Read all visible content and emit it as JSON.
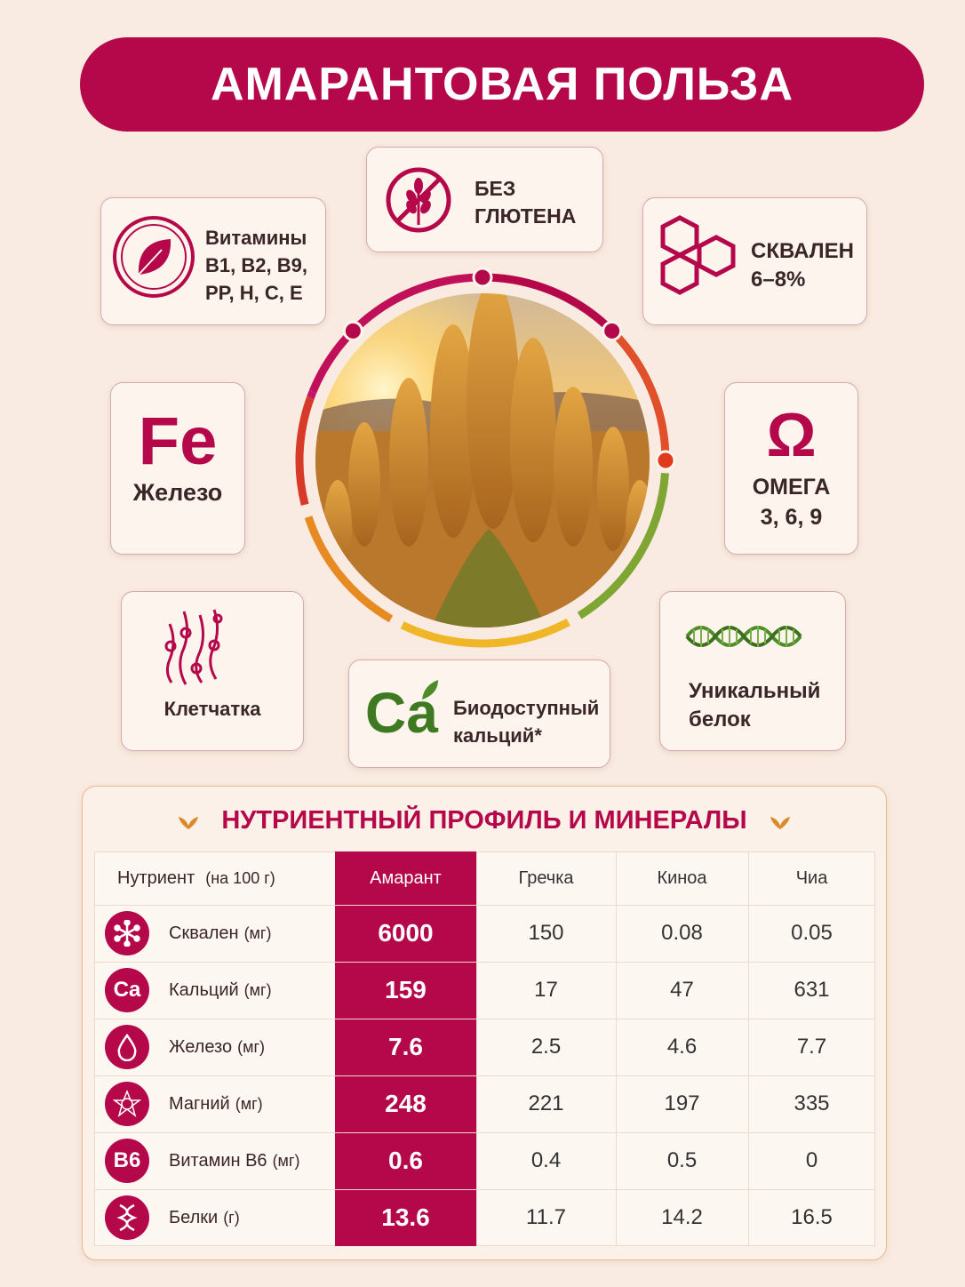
{
  "title": "АМАРАНТОВАЯ ПОЛЬЗА",
  "features": {
    "vitamins": {
      "lines": [
        "Витамины",
        "B1, B2, B9,",
        "PP, H, C, E"
      ]
    },
    "gluten": {
      "lines": [
        "БЕЗ",
        "ГЛЮТЕНА"
      ]
    },
    "squalene": {
      "lines": [
        "СКВАЛЕН",
        "6–8%"
      ]
    },
    "iron": {
      "symbol": "Fe",
      "lines": [
        "Железо"
      ]
    },
    "omega": {
      "symbol": "Ω",
      "lines": [
        "ОМЕГА",
        "3, 6, 9"
      ]
    },
    "fiber": {
      "lines": [
        "Клетчатка"
      ]
    },
    "calcium": {
      "symbol": "Ca",
      "lines": [
        "Биодоступный",
        "кальций*"
      ]
    },
    "protein": {
      "lines": [
        "Уникальный",
        "белок"
      ]
    }
  },
  "table": {
    "title": "НУТРИЕНТНЫЙ ПРОФИЛЬ И МИНЕРАЛЫ",
    "header": {
      "nutrient": "Нутриент",
      "unit": "(на 100 г)",
      "columns": [
        "Амарант",
        "Гречка",
        "Киноа",
        "Чиа"
      ]
    },
    "rows": [
      {
        "name": "Сквален",
        "unit": "(мг)",
        "values": [
          "6000",
          "150",
          "0.08",
          "0.05"
        ]
      },
      {
        "icon_label": "Ca",
        "name": "Кальций",
        "unit": "(мг)",
        "values": [
          "159",
          "17",
          "47",
          "631"
        ]
      },
      {
        "name": "Железо",
        "unit": "(мг)",
        "values": [
          "7.6",
          "2.5",
          "4.6",
          "7.7"
        ]
      },
      {
        "name": "Магний",
        "unit": "(мг)",
        "values": [
          "248",
          "221",
          "197",
          "335"
        ]
      },
      {
        "icon_label": "B6",
        "name": "Витамин B6",
        "unit": "(мг)",
        "values": [
          "0.6",
          "0.4",
          "0.5",
          "0"
        ]
      },
      {
        "name": "Белки",
        "unit": "(г)",
        "values": [
          "13.6",
          "11.7",
          "14.2",
          "16.5"
        ]
      }
    ]
  }
}
